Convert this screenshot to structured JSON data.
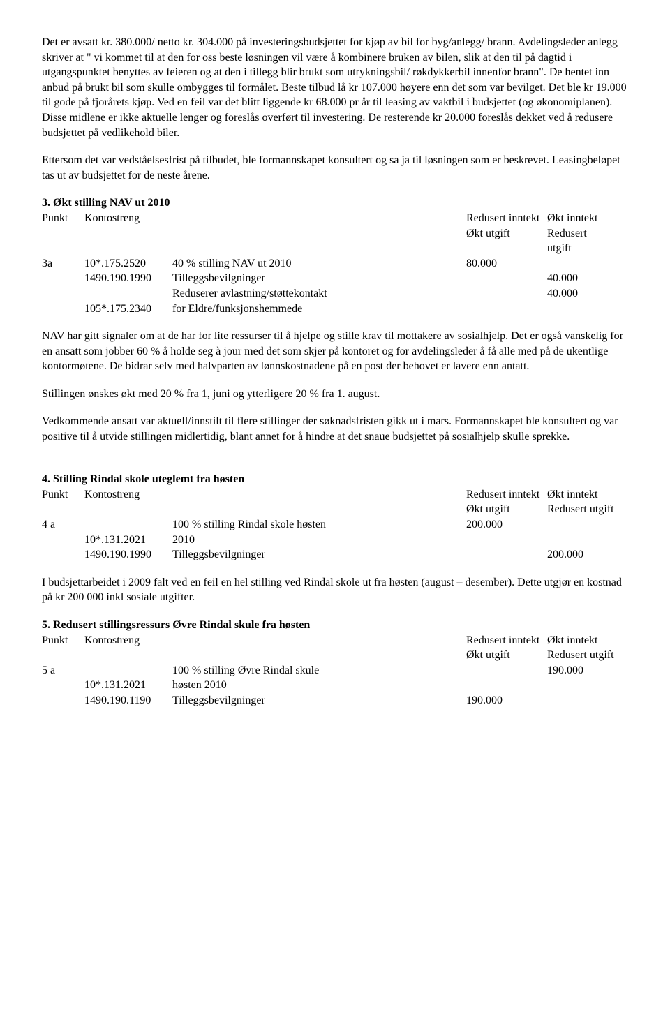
{
  "para1": "Det er avsatt kr. 380.000/ netto kr. 304.000 på investeringsbudsjettet for kjøp av bil for byg/anlegg/ brann. Avdelingsleder anlegg skriver at \" vi kommet til at den for oss beste løsningen vil være å kombinere bruken av bilen, slik at den til på dagtid i utgangspunktet benyttes av feieren og at den i tillegg blir brukt som utrykningsbil/ røkdykkerbil innenfor brann\". De hentet inn anbud på brukt bil som skulle ombygges til formålet. Beste tilbud lå kr 107.000 høyere enn det som var bevilget. Det ble kr 19.000 til gode på fjorårets kjøp. Ved en feil var det blitt liggende kr 68.000 pr år til leasing av vaktbil i budsjettet (og økonomiplanen). Disse midlene er ikke aktuelle lenger og foreslås overført til investering. De resterende kr 20.000 foreslås dekket ved å redusere budsjettet på vedlikehold biler.",
  "para2": "Ettersom det var vedståelsesfrist på tilbudet, ble formannskapet konsultert og sa ja til løsningen som er beskrevet. Leasingbeløpet tas ut av budsjettet for de neste årene.",
  "sec3": {
    "heading": "3. Økt stilling NAV ut 2010",
    "hdr_punkt": "Punkt",
    "hdr_konto": "Kontostreng",
    "hdr_col1a": "Redusert inntekt",
    "hdr_col1b": "Økt utgift",
    "hdr_col2a": "Økt inntekt",
    "hdr_col2b": "Redusert",
    "hdr_col2c": "utgift",
    "r1_punkt": "3a",
    "r1_konto": "10*.175.2520",
    "r1_desc": "40 % stilling NAV ut 2010",
    "r1_v1": "80.000",
    "r2_konto": "1490.190.1990",
    "r2_desc": "Tilleggsbevilgninger",
    "r2_v2": "40.000",
    "r3_desc": "Reduserer avlastning/støttekontakt",
    "r3_v2": "40.000",
    "r4_konto": "105*.175.2340",
    "r4_desc": "for Eldre/funksjonshemmede",
    "p1": "NAV har gitt signaler om at de har for lite ressurser til å hjelpe og stille krav til mottakere av sosialhjelp. Det er også vanskelig for en ansatt som jobber 60 % å holde seg à jour med det som skjer på kontoret og for avdelingsleder å få alle med på de ukentlige kontormøtene. De bidrar selv med halvparten av lønnskostnadene på en post der behovet er lavere enn antatt.",
    "p2": "Stillingen ønskes økt med 20 % fra 1, juni og ytterligere 20 % fra 1. august.",
    "p3": "Vedkommende ansatt var aktuell/innstilt til flere stillinger der søknadsfristen gikk ut i mars. Formannskapet ble konsultert og var positive til å utvide stillingen midlertidig, blant annet for å hindre at det snaue budsjettet på sosialhjelp skulle sprekke."
  },
  "sec4": {
    "heading": "4. Stilling Rindal skole uteglemt fra høsten",
    "hdr_punkt": "Punkt",
    "hdr_konto": "Kontostreng",
    "hdr_col1a": "Redusert inntekt",
    "hdr_col1b": "Økt utgift",
    "hdr_col2a": "Økt inntekt",
    "hdr_col2b": "Redusert utgift",
    "r1_punkt": "4 a",
    "r1_desc": "100 % stilling Rindal skole høsten",
    "r1_v1": "200.000",
    "r2_konto": "10*.131.2021",
    "r2_desc": "2010",
    "r3_konto": "1490.190.1990",
    "r3_desc": "Tilleggsbevilgninger",
    "r3_v2": "200.000",
    "p1": "I budsjettarbeidet i 2009 falt ved en feil en hel stilling ved Rindal skole ut fra høsten (august – desember). Dette utgjør en kostnad på kr 200 000 inkl sosiale utgifter."
  },
  "sec5": {
    "heading": "5. Redusert stillingsressurs Øvre Rindal skule  fra høsten",
    "hdr_punkt": "Punkt",
    "hdr_konto": "Kontostreng",
    "hdr_col1a": "Redusert inntekt",
    "hdr_col1b": "Økt utgift",
    "hdr_col2a": "Økt inntekt",
    "hdr_col2b": "Redusert utgift",
    "r1_punkt": "5 a",
    "r1_desc": "100 % stilling Øvre Rindal skule",
    "r1_v2": "190.000",
    "r2_konto": "10*.131.2021",
    "r2_desc": "høsten 2010",
    "r3_konto": "1490.190.1190",
    "r3_desc": "Tilleggsbevilgninger",
    "r3_v1": "190.000"
  }
}
